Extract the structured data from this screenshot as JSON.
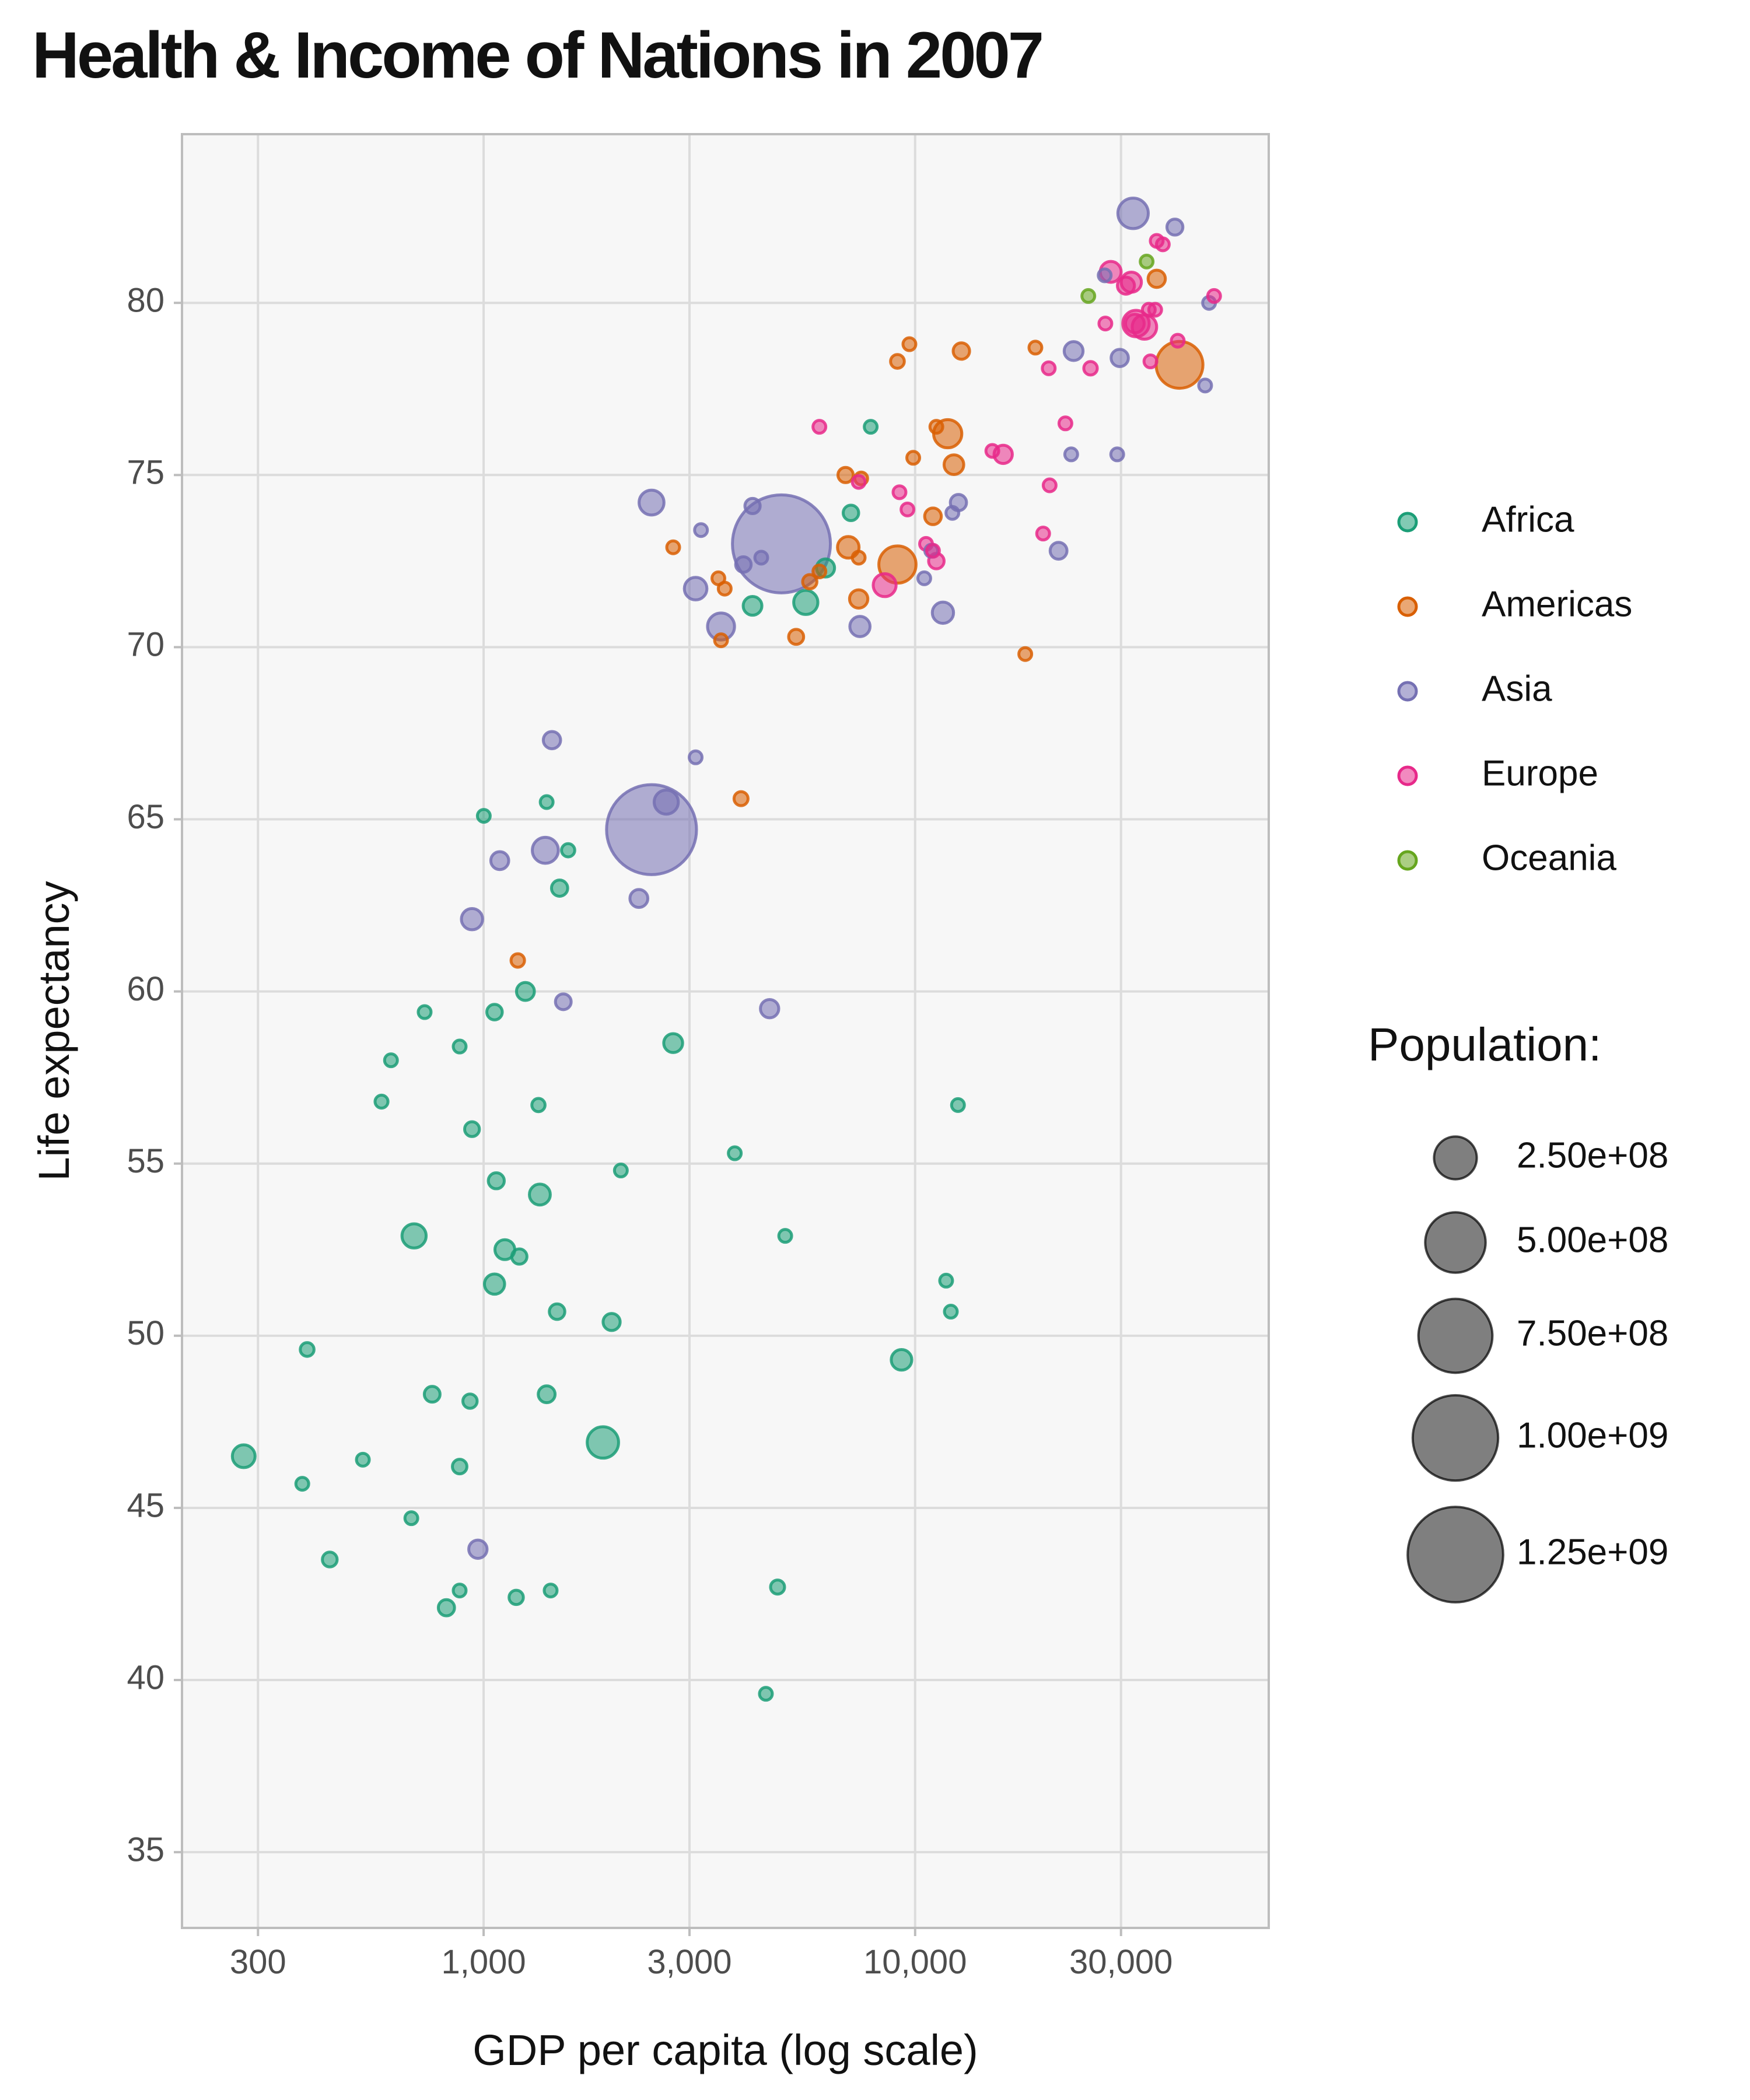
{
  "chart_data": {
    "type": "scatter",
    "title": "Health & Income of Nations in 2007",
    "xlabel": "GDP per capita (log scale)",
    "ylabel": "Life expectancy",
    "x_scale": "log",
    "xlim": [
      200,
      66000
    ],
    "ylim": [
      32.8,
      84.9
    ],
    "x_ticks": [
      300,
      1000,
      3000,
      10000,
      30000
    ],
    "x_tick_labels": [
      "300",
      "1,000",
      "3,000",
      "10,000",
      "30,000"
    ],
    "y_ticks": [
      35,
      40,
      45,
      50,
      55,
      60,
      65,
      70,
      75,
      80
    ],
    "y_tick_labels": [
      "35",
      "40",
      "45",
      "50",
      "55",
      "60",
      "65",
      "70",
      "75",
      "80"
    ],
    "grid": true,
    "legend_position": "right",
    "colors": {
      "Africa": "#1b9e77",
      "Americas": "#d95f02",
      "Asia": "#7570b3",
      "Europe": "#e7298a",
      "Oceania": "#66a61e",
      "panel": "#f7f7f7",
      "grid": "#dcdcdc",
      "size_legend": "#000000"
    },
    "size_legend": {
      "title": "Population:",
      "breaks": [
        250000000,
        500000000,
        750000000,
        1000000000,
        1250000000
      ],
      "labels": [
        "2.50e+08",
        "5.00e+08",
        "7.50e+08",
        "1.00e+09",
        "1.25e+09"
      ]
    },
    "series": [
      {
        "name": "Africa",
        "points": [
          [
            278,
            46.5,
            71000000.0
          ],
          [
            1001,
            65.1,
            14000000.0
          ],
          [
            1400,
            65.5,
            13000000.0
          ],
          [
            1570,
            64.1,
            24000000.0
          ],
          [
            1500,
            63.0,
            36000000.0
          ],
          [
            1250,
            60.0,
            44000000.0
          ],
          [
            1060,
            59.4,
            33000000.0
          ],
          [
            730,
            59.4,
            11000000.0
          ],
          [
            610,
            58.0,
            15000000.0
          ],
          [
            880,
            58.4,
            16000000.0
          ],
          [
            2750,
            58.5,
            49000000.0
          ],
          [
            580,
            56.8,
            23000000.0
          ],
          [
            1340,
            56.7,
            24000000.0
          ],
          [
            940,
            56.0,
            30000000.0
          ],
          [
            12570,
            56.7,
            16000000.0
          ],
          [
            3820,
            55.3,
            21000000.0
          ],
          [
            2080,
            54.8,
            12000000.0
          ],
          [
            1070,
            54.5,
            35000000.0
          ],
          [
            1350,
            54.1,
            60000000.0
          ],
          [
            690,
            52.9,
            80000000.0
          ],
          [
            1120,
            52.5,
            54000000.0
          ],
          [
            1210,
            52.3,
            32000000.0
          ],
          [
            5000,
            52.9,
            15000000.0
          ],
          [
            1060,
            51.5,
            56000000.0
          ],
          [
            11800,
            51.6,
            11000000.0
          ],
          [
            12100,
            50.7,
            13000000.0
          ],
          [
            1480,
            50.7,
            33000000.0
          ],
          [
            1980,
            50.4,
            40000000.0
          ],
          [
            9300,
            49.3,
            58000000.0
          ],
          [
            390,
            49.6,
            26000000.0
          ],
          [
            760,
            48.3,
            34000000.0
          ],
          [
            930,
            48.1,
            28000000.0
          ],
          [
            1400,
            48.3,
            39000000.0
          ],
          [
            1890,
            46.9,
            135000000.0
          ],
          [
            525,
            46.4,
            11000000.0
          ],
          [
            380,
            45.7,
            16000000.0
          ],
          [
            880,
            46.2,
            29000000.0
          ],
          [
            680,
            44.7,
            19000000.0
          ],
          [
            440,
            43.5,
            30000000.0
          ],
          [
            880,
            42.6,
            18000000.0
          ],
          [
            820,
            42.1,
            36000000.0
          ],
          [
            1190,
            42.4,
            28000000.0
          ],
          [
            1430,
            42.6,
            12000000.0
          ],
          [
            4800,
            42.7,
            27000000.0
          ],
          [
            4510,
            39.6,
            13000000.0
          ],
          [
            5580,
            71.3,
            80000000.0
          ],
          [
            7100,
            73.9,
            33000000.0
          ],
          [
            4200,
            71.2,
            48000000.0
          ],
          [
            6200,
            72.3,
            45000000.0
          ],
          [
            7890,
            76.4,
            12000000.0
          ]
        ]
      },
      {
        "name": "Americas",
        "points": [
          [
            9100,
            78.3,
            26000000.0
          ],
          [
            9700,
            78.8,
            16000000.0
          ],
          [
            12800,
            78.6,
            37000000.0
          ],
          [
            19000,
            78.7,
            14000000.0
          ],
          [
            41000,
            78.2,
            301000000.0
          ],
          [
            36300,
            80.7,
            41000000.0
          ],
          [
            11200,
            76.4,
            16000000.0
          ],
          [
            11900,
            76.2,
            109000000.0
          ],
          [
            9900,
            75.5,
            15000000.0
          ],
          [
            6900,
            75.0,
            32000000.0
          ],
          [
            7500,
            74.9,
            14000000.0
          ],
          [
            12300,
            75.3,
            53000000.0
          ],
          [
            11000,
            73.8,
            38000000.0
          ],
          [
            7000,
            72.9,
            64000000.0
          ],
          [
            9100,
            72.4,
            190000000.0
          ],
          [
            2750,
            72.9,
            14000000.0
          ],
          [
            7400,
            72.6,
            14000000.0
          ],
          [
            7400,
            71.4,
            46000000.0
          ],
          [
            6000,
            72.2,
            22000000.0
          ],
          [
            5700,
            71.9,
            28000000.0
          ],
          [
            3500,
            72.0,
            19000000.0
          ],
          [
            3620,
            71.7,
            15000000.0
          ],
          [
            3550,
            70.2,
            22000000.0
          ],
          [
            5300,
            70.3,
            31000000.0
          ],
          [
            18000,
            69.8,
            12000000.0
          ],
          [
            3950,
            65.6,
            27000000.0
          ],
          [
            1200,
            60.9,
            25000000.0
          ]
        ]
      },
      {
        "name": "Asia",
        "points": [
          [
            32000,
            82.6,
            127000000.0
          ],
          [
            40000,
            82.2,
            35000000.0
          ],
          [
            27500,
            80.8,
            20000000.0
          ],
          [
            48000,
            80.0,
            22000000.0
          ],
          [
            23300,
            78.6,
            49000000.0
          ],
          [
            29800,
            78.4,
            41000000.0
          ],
          [
            47000,
            77.6,
            19000000.0
          ],
          [
            23000,
            75.6,
            15000000.0
          ],
          [
            29400,
            75.6,
            11000000.0
          ],
          [
            12600,
            74.2,
            36000000.0
          ],
          [
            12200,
            73.9,
            21000000.0
          ],
          [
            10500,
            72.0,
            13000000.0
          ],
          [
            10900,
            72.8,
            13000000.0
          ],
          [
            2450,
            74.2,
            85000000.0
          ],
          [
            3190,
            73.4,
            22000000.0
          ],
          [
            4200,
            74.1,
            32000000.0
          ],
          [
            4900,
            73.0,
            1318000000.0
          ],
          [
            4400,
            72.6,
            21000000.0
          ],
          [
            4000,
            72.4,
            33000000.0
          ],
          [
            3100,
            71.7,
            70000000.0
          ],
          [
            3550,
            70.6,
            100000000.0
          ],
          [
            7450,
            70.6,
            56000000.0
          ],
          [
            11600,
            71.0,
            62000000.0
          ],
          [
            21500,
            72.8,
            39000000.0
          ],
          [
            1440,
            67.3,
            41000000.0
          ],
          [
            3100,
            66.8,
            17000000.0
          ],
          [
            2450,
            64.7,
            1110000000.0
          ],
          [
            2650,
            65.5,
            80000000.0
          ],
          [
            1090,
            63.8,
            44000000.0
          ],
          [
            1390,
            64.1,
            93000000.0
          ],
          [
            2290,
            62.7,
            44000000.0
          ],
          [
            940,
            62.1,
            62000000.0
          ],
          [
            1530,
            59.7,
            34000000.0
          ],
          [
            4600,
            59.5,
            46000000.0
          ],
          [
            970,
            43.8,
            46000000.0
          ]
        ]
      },
      {
        "name": "Europe",
        "points": [
          [
            28400,
            80.9,
            60000000.0
          ],
          [
            27600,
            79.4,
            16000000.0
          ],
          [
            31700,
            80.6,
            56000000.0
          ],
          [
            36300,
            81.8,
            18000000.0
          ],
          [
            37500,
            81.7,
            12000000.0
          ],
          [
            49300,
            80.2,
            15000000.0
          ],
          [
            32500,
            79.4,
            96000000.0
          ],
          [
            34000,
            79.3,
            82000000.0
          ],
          [
            34800,
            79.8,
            15000000.0
          ],
          [
            36000,
            79.8,
            20000000.0
          ],
          [
            40600,
            78.9,
            13000000.0
          ],
          [
            32300,
            79.4,
            48000000.0
          ],
          [
            25500,
            78.1,
            25000000.0
          ],
          [
            35100,
            78.3,
            18000000.0
          ],
          [
            20400,
            78.1,
            20000000.0
          ],
          [
            30800,
            80.5,
            40000000.0
          ],
          [
            22300,
            76.5,
            21000000.0
          ],
          [
            15100,
            75.7,
            16000000.0
          ],
          [
            16000,
            75.6,
            46000000.0
          ],
          [
            20500,
            74.7,
            17000000.0
          ],
          [
            6000,
            76.4,
            18000000.0
          ],
          [
            7400,
            74.8,
            14000000.0
          ],
          [
            9600,
            74.0,
            21000000.0
          ],
          [
            10600,
            73.0,
            16000000.0
          ],
          [
            11200,
            72.5,
            33000000.0
          ],
          [
            8500,
            71.8,
            72000000.0
          ],
          [
            19800,
            73.3,
            22000000.0
          ],
          [
            9200,
            74.5,
            10000000.0
          ],
          [
            11000,
            72.8,
            13000000.0
          ]
        ]
      },
      {
        "name": "Oceania",
        "points": [
          [
            34400,
            81.2,
            21000000.0
          ],
          [
            25200,
            80.2,
            12000000.0
          ]
        ]
      }
    ]
  }
}
